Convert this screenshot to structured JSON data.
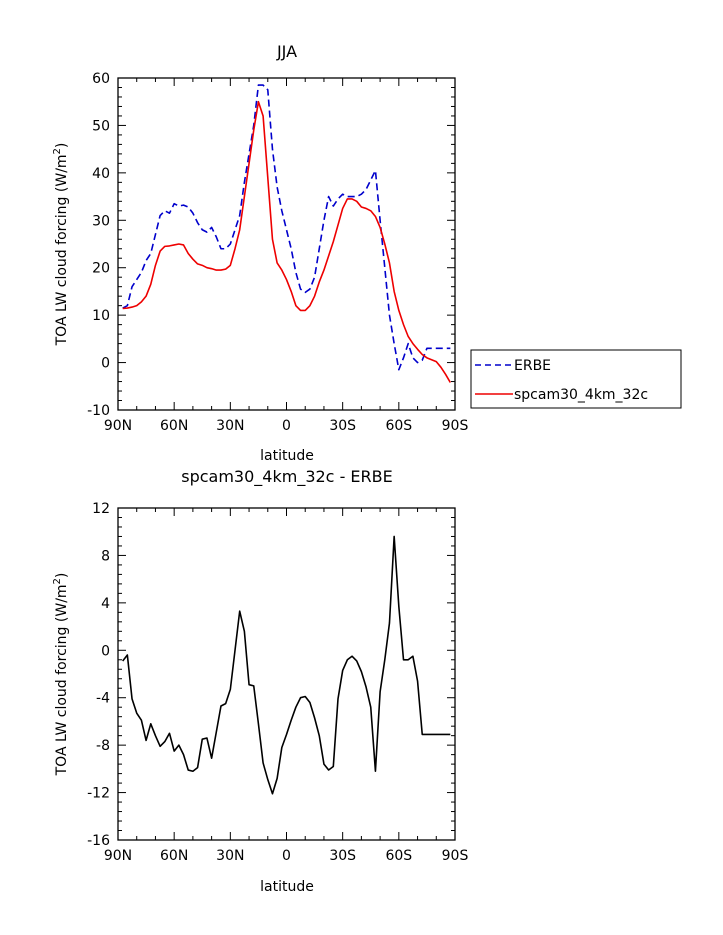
{
  "chart_data": [
    {
      "type": "line",
      "title": "JJA",
      "xlabel": "latitude",
      "ylabel_prefix": "TOA LW cloud forcing (W/m",
      "ylabel_sup": "2",
      "ylabel_suffix": ")",
      "xlim": [
        -90,
        90
      ],
      "ylim": [
        -10,
        60
      ],
      "xticks": [
        -90,
        -60,
        -30,
        0,
        30,
        60,
        90
      ],
      "xtick_labels": [
        "90N",
        "60N",
        "30N",
        "0",
        "30S",
        "60S",
        "90S"
      ],
      "yticks": [
        -10,
        0,
        10,
        20,
        30,
        40,
        50,
        60
      ],
      "ytick_labels": [
        "-10",
        "0",
        "10",
        "20",
        "30",
        "40",
        "50",
        "60"
      ],
      "legend_position": "right-outside",
      "series": [
        {
          "name": "ERBE",
          "color": "#0000cc",
          "dash": "dashed",
          "x": [
            -87.5,
            -85,
            -82.5,
            -80,
            -77.5,
            -75,
            -72.5,
            -70,
            -67.5,
            -65,
            -62.5,
            -60,
            -57.5,
            -55,
            -52.5,
            -50,
            -47.5,
            -45,
            -42.5,
            -40,
            -37.5,
            -35,
            -32.5,
            -30,
            -27.5,
            -25,
            -22.5,
            -20,
            -17.5,
            -15,
            -12.5,
            -10,
            -7.5,
            -5,
            -2.5,
            0,
            2.5,
            5,
            7.5,
            10,
            12.5,
            15,
            17.5,
            20,
            22.5,
            25,
            27.5,
            30,
            32.5,
            35,
            37.5,
            40,
            42.5,
            45,
            47.5,
            50,
            52.5,
            55,
            57.5,
            60,
            62.5,
            65,
            67.5,
            70,
            72.5,
            75,
            77.5,
            80,
            82.5,
            85,
            87.5
          ],
          "y": [
            11.5,
            12,
            16,
            17.5,
            19,
            21.5,
            23,
            27,
            31,
            32,
            31.5,
            33.5,
            33,
            33.2,
            32.8,
            31.5,
            29.5,
            28,
            27.5,
            28.5,
            26.5,
            24,
            24,
            25,
            28,
            31,
            38,
            44,
            50,
            58.5,
            58.5,
            57.5,
            45,
            37,
            32,
            28,
            24,
            19,
            15.5,
            14.8,
            15.5,
            18,
            24,
            30,
            35,
            33,
            34.5,
            35.5,
            35,
            35,
            35,
            35.5,
            36.5,
            38.5,
            40.5,
            30,
            20,
            10,
            4,
            -1.5,
            1,
            4,
            1,
            0,
            0.5,
            3,
            3,
            3,
            3,
            3,
            3
          ]
        },
        {
          "name": "spcam30_4km_32c",
          "color": "#ee0000",
          "dash": "solid",
          "x": [
            -87.5,
            -85,
            -82.5,
            -80,
            -77.5,
            -75,
            -72.5,
            -70,
            -67.5,
            -65,
            -62.5,
            -60,
            -57.5,
            -55,
            -52.5,
            -50,
            -47.5,
            -45,
            -42.5,
            -40,
            -37.5,
            -35,
            -32.5,
            -30,
            -27.5,
            -25,
            -22.5,
            -20,
            -17.5,
            -15,
            -12.5,
            -10,
            -7.5,
            -5,
            -2.5,
            0,
            2.5,
            5,
            7.5,
            10,
            12.5,
            15,
            17.5,
            20,
            22.5,
            25,
            27.5,
            30,
            32.5,
            35,
            37.5,
            40,
            42.5,
            45,
            47.5,
            50,
            52.5,
            55,
            57.5,
            60,
            62.5,
            65,
            67.5,
            70,
            72.5,
            75,
            77.5,
            80,
            82.5,
            85,
            87.5
          ],
          "y": [
            11.4,
            11.5,
            11.7,
            12,
            12.8,
            14,
            16.5,
            20.5,
            23.5,
            24.5,
            24.6,
            24.8,
            25,
            24.8,
            23,
            21.8,
            20.8,
            20.5,
            20,
            19.8,
            19.5,
            19.5,
            19.7,
            20.5,
            24,
            28,
            35,
            42,
            49,
            55,
            52,
            39,
            26,
            21,
            19.5,
            17.5,
            15,
            12,
            11,
            11,
            12,
            14,
            17,
            19.5,
            22.5,
            25.5,
            29,
            32.5,
            34.5,
            34.5,
            34,
            32.8,
            32.5,
            32,
            30.8,
            28.5,
            25,
            21,
            15,
            11,
            8,
            5.5,
            4,
            2.8,
            1.7,
            1,
            0.6,
            0.2,
            -1,
            -2.5,
            -4.2
          ]
        }
      ]
    },
    {
      "type": "line",
      "title": "spcam30_4km_32c - ERBE",
      "xlabel": "latitude",
      "ylabel_prefix": "TOA LW cloud forcing (W/m",
      "ylabel_sup": "2",
      "ylabel_suffix": ")",
      "xlim": [
        -90,
        90
      ],
      "ylim": [
        -16,
        12
      ],
      "xticks": [
        -90,
        -60,
        -30,
        0,
        30,
        60,
        90
      ],
      "xtick_labels": [
        "90N",
        "60N",
        "30N",
        "0",
        "30S",
        "60S",
        "90S"
      ],
      "yticks": [
        -16,
        -12,
        -8,
        -4,
        0,
        4,
        8,
        12
      ],
      "ytick_labels": [
        "-16",
        "-12",
        "-8",
        "-4",
        "0",
        "4",
        "8",
        "12"
      ],
      "series": [
        {
          "color": "#000000",
          "dash": "solid",
          "x": [
            -87.5,
            -85,
            -82.5,
            -80,
            -77.5,
            -75,
            -72.5,
            -70,
            -67.5,
            -65,
            -62.5,
            -60,
            -57.5,
            -55,
            -52.5,
            -50,
            -47.5,
            -45,
            -42.5,
            -40,
            -37.5,
            -35,
            -32.5,
            -30,
            -27.5,
            -25,
            -22.5,
            -20,
            -17.5,
            -15,
            -12.5,
            -10,
            -7.5,
            -5,
            -2.5,
            0,
            2.5,
            5,
            7.5,
            10,
            12.5,
            15,
            17.5,
            20,
            22.5,
            25,
            27.5,
            30,
            32.5,
            35,
            37.5,
            40,
            42.5,
            45,
            47.5,
            50,
            52.5,
            55,
            57.5,
            60,
            62.5,
            65,
            67.5,
            70,
            72.5,
            75,
            77.5,
            80,
            82.5,
            85,
            87.5
          ],
          "y": [
            -0.9,
            -0.4,
            -4.1,
            -5.3,
            -5.9,
            -7.6,
            -6.2,
            -7.2,
            -8.1,
            -7.7,
            -7,
            -8.5,
            -8,
            -8.8,
            -10.1,
            -10.2,
            -9.9,
            -7.5,
            -7.4,
            -9.1,
            -6.9,
            -4.7,
            -4.5,
            -3.3,
            0,
            3.3,
            1.6,
            -2.9,
            -3,
            -6.2,
            -9.5,
            -10.9,
            -12.1,
            -10.8,
            -8.2,
            -7.1,
            -5.9,
            -4.8,
            -4,
            -3.9,
            -4.4,
            -5.7,
            -7.2,
            -9.6,
            -10.1,
            -9.8,
            -4.1,
            -1.7,
            -0.8,
            -0.5,
            -0.9,
            -1.8,
            -3.1,
            -4.8,
            -10.2,
            -3.5,
            -0.8,
            2.3,
            9.6,
            3.7,
            -0.8,
            -0.8,
            -0.5,
            -2.6,
            -7.1,
            -7.1,
            -7.1,
            -7.1,
            -7.1,
            -7.1,
            -7.1
          ]
        }
      ]
    }
  ]
}
